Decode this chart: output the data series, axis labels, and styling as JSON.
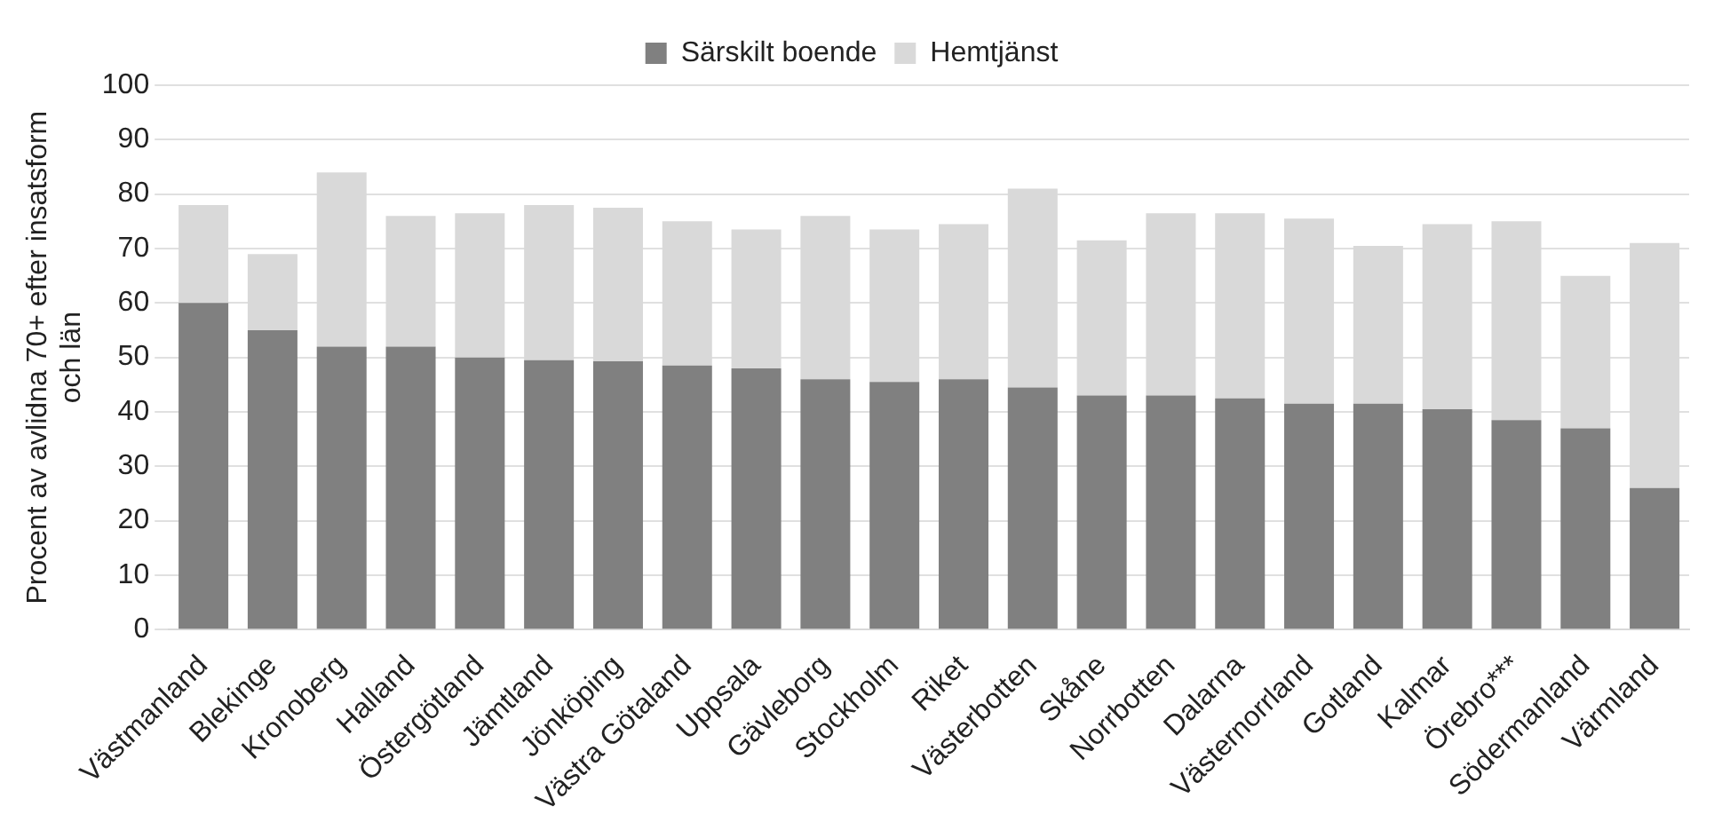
{
  "chart_data": {
    "type": "bar",
    "stacked": true,
    "ylabel": "Procent av avlidna 70+ efter insatsform\noch län",
    "categories": [
      "Västmanland",
      "Blekinge",
      "Kronoberg",
      "Halland",
      "Östergötland",
      "Jämtland",
      "Jönköping",
      "Västra Götaland",
      "Uppsala",
      "Gävleborg",
      "Stockholm",
      "Riket",
      "Västerbotten",
      "Skåne",
      "Norrbotten",
      "Dalarna",
      "Västernorrland",
      "Gotland",
      "Kalmar",
      "Örebro***",
      "Södermanland",
      "Värmland"
    ],
    "series": [
      {
        "name": "Särskilt boende",
        "color": "#808080",
        "values": [
          60,
          55,
          52,
          52,
          50,
          49.5,
          49.3,
          48.5,
          48,
          46,
          45.5,
          46,
          44.5,
          43,
          43,
          42.5,
          41.5,
          41.5,
          40.5,
          38.5,
          37,
          26
        ]
      },
      {
        "name": "Hemtjänst",
        "color": "#d9d9d9",
        "values": [
          18,
          14,
          32,
          24,
          26.5,
          28.5,
          28.2,
          26.5,
          25.5,
          30,
          28,
          28.5,
          36.5,
          28.5,
          33.5,
          34,
          34,
          29,
          34,
          36.5,
          28,
          45
        ]
      }
    ],
    "ylim": [
      0,
      100
    ],
    "yticks": [
      0,
      10,
      20,
      30,
      40,
      50,
      60,
      70,
      80,
      90,
      100
    ],
    "grid": "y",
    "legend": "top"
  }
}
